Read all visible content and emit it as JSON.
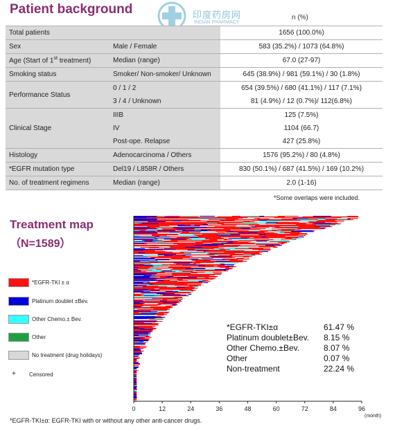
{
  "header": {
    "title": "Patient background",
    "column_header": "n (%)",
    "watermark_cn": "印度药房网",
    "watermark_en": "INDIAN PHARMACY"
  },
  "table": [
    {
      "label": "Total patients",
      "sub": "",
      "value": "1656 (100.0%)"
    },
    {
      "label": "Sex",
      "sub": "Male / Female",
      "value": "583 (35.2%) / 1073 (64.8%)"
    },
    {
      "label_pre": "Age (Start of 1",
      "label_sup": "st",
      "label_post": " treatment)",
      "sub": "Median (range)",
      "value": "67.0 (27-97)"
    },
    {
      "label": "Smoking status",
      "sub": "Smoker/ Non-smoker/ Unknown",
      "value": "645 (38.9%) / 981 (59.1%) / 30 (1.8%)"
    },
    {
      "label": "Performance Status",
      "rows": [
        {
          "sub": "0 / 1 / 2",
          "value": "654 (39.5%) / 680 (41.1%) / 117 (7.1%)"
        },
        {
          "sub": "3 / 4 / Unknown",
          "value": "81 (4.9%) / 12 (0.7%)/ 112(6.8%)"
        }
      ]
    },
    {
      "label": "Clinical Stage",
      "rows": [
        {
          "sub": "IIIB",
          "value": "125 (7.5%)"
        },
        {
          "sub": "IV",
          "value": "1104 (66.7)"
        },
        {
          "sub": "Post-ope. Relapse",
          "value": "427 (25.8%)"
        }
      ]
    },
    {
      "label": "Histology",
      "sub": "Adenocarcinoma / Others",
      "value": "1576 (95.2%) / 80 (4.8%)"
    },
    {
      "label": "*EGFR mutation type",
      "sub": "Del19 / L858R / Others",
      "value": "830 (50.1%) / 687 (41.5%) / 169 (10.2%)"
    },
    {
      "label": "No. of treatment regimens",
      "sub": "Median (range)",
      "value": "2.0 (1-16)"
    }
  ],
  "table_note": "*Some overlaps were included.",
  "treatment_map": {
    "title": "Treatment map",
    "n_label": "（N=1589）",
    "legend": [
      {
        "label": "*EGFR-TKI ± α",
        "color": "#ff1010"
      },
      {
        "label": "Platinum doublet ±Bev.",
        "color": "#0000dd"
      },
      {
        "label": "Other Chemo.± Bev.",
        "color": "#33ffff"
      },
      {
        "label": "Other",
        "color": "#1ea040"
      },
      {
        "label": "No treatment (drug holidays)",
        "color": "#d8d8d8"
      }
    ],
    "censored_symbol": "+",
    "censored_label": "Censored",
    "stats": [
      {
        "name": "*EGFR-TKI±α",
        "value": "61.47 %"
      },
      {
        "name": "Platinum doublet±Bev.",
        "value": "8.15 %"
      },
      {
        "name": "Other Chemo.±Bev.",
        "value": "8.07 %"
      },
      {
        "name": "Other",
        "value": "0.07 %"
      },
      {
        "name": "Non-treatment",
        "value": "22.24 %"
      }
    ],
    "x_ticks": [
      "0",
      "12",
      "24",
      "36",
      "48",
      "60",
      "72",
      "84",
      "96"
    ],
    "x_unit": "(month)"
  },
  "chart_data": {
    "type": "bar",
    "title": "Treatment map",
    "xlabel": "(month)",
    "xlim": [
      0,
      96
    ],
    "x_ticks": [
      0,
      12,
      24,
      36,
      48,
      60,
      72,
      84,
      96
    ],
    "series": [
      {
        "name": "*EGFR-TKI±α",
        "values": [
          61.47
        ]
      },
      {
        "name": "Platinum doublet±Bev.",
        "values": [
          8.15
        ]
      },
      {
        "name": "Other Chemo.±Bev.",
        "values": [
          8.07
        ]
      },
      {
        "name": "Other",
        "values": [
          0.07
        ]
      },
      {
        "name": "Non-treatment",
        "values": [
          22.24
        ]
      }
    ]
  },
  "footnote": "*EGFR-TKI±α: EGFR-TKI with or without any other anti-cancer drugs."
}
